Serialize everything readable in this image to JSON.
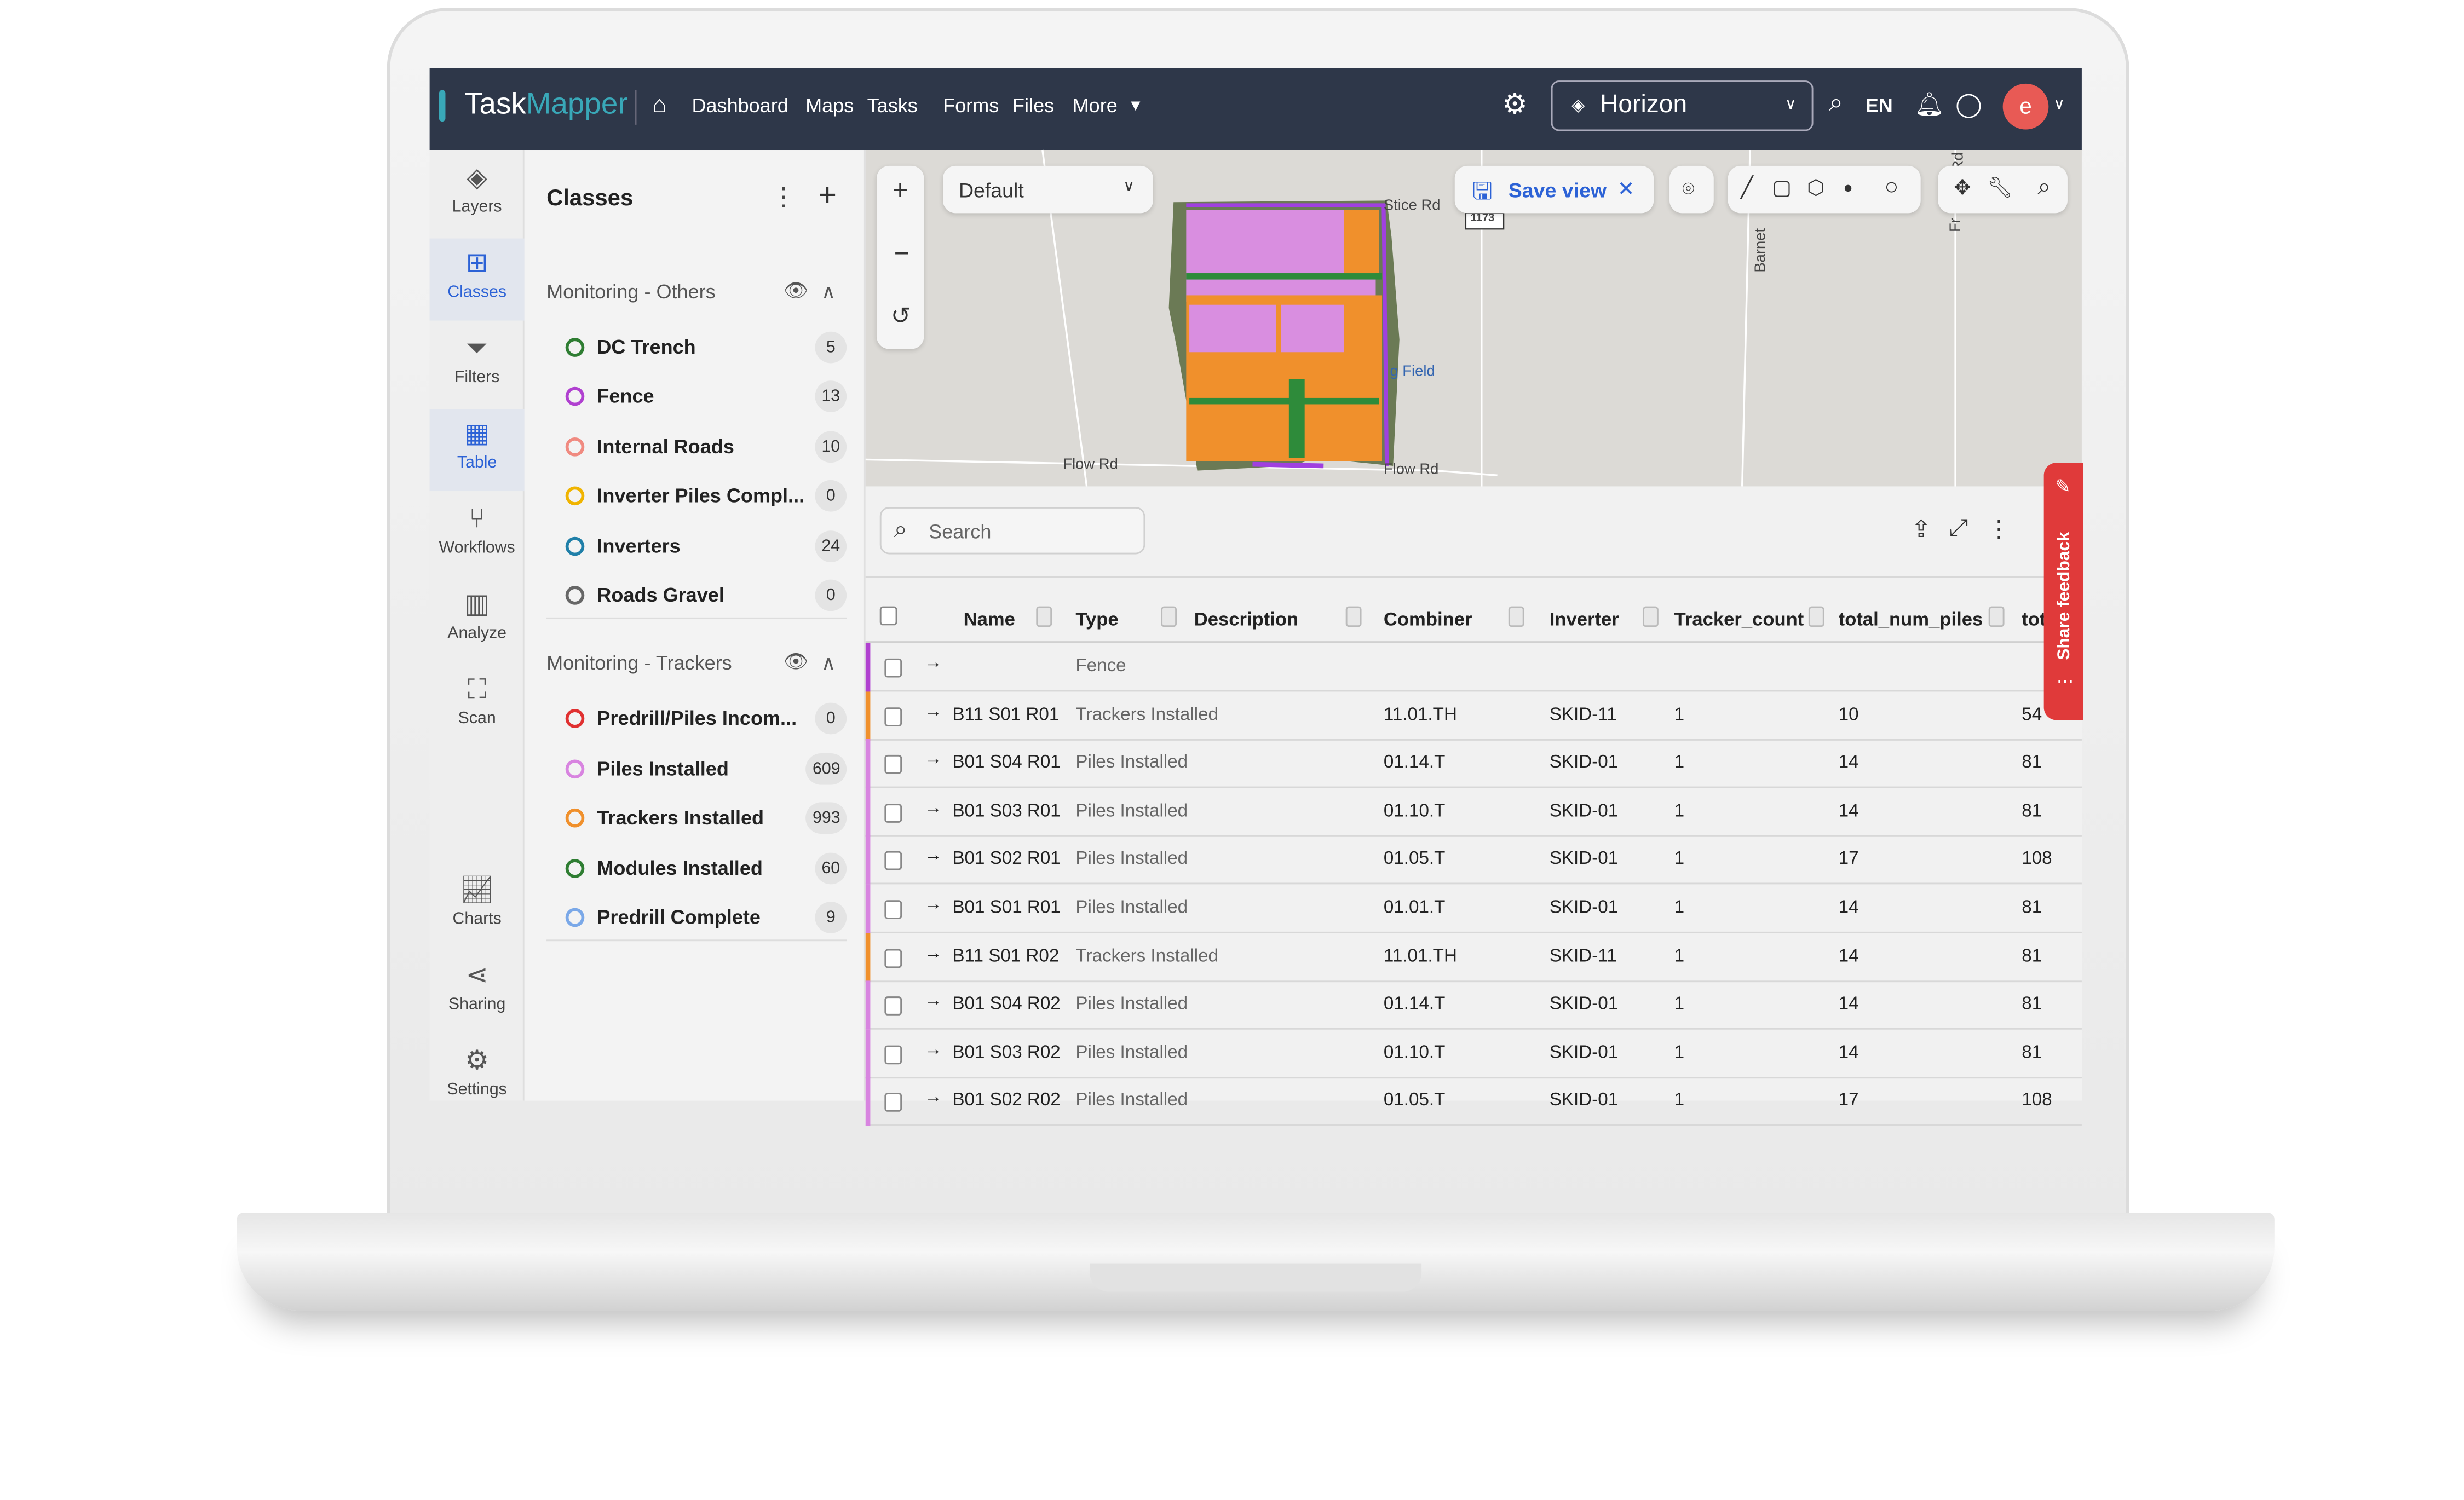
{
  "topbar": {
    "logo_task": "Task",
    "logo_mapper": "Mapper",
    "nav": [
      "Dashboard",
      "Maps",
      "Tasks",
      "Forms",
      "Files",
      "More"
    ],
    "project": "Horizon",
    "language": "EN",
    "avatar_letter": "e",
    "colors": {
      "bar": "#2e3749",
      "avatar": "#e85a55",
      "logo_accent": "#39a8b8"
    }
  },
  "rail": [
    {
      "label": "Layers",
      "icon": "layers-icon"
    },
    {
      "label": "Classes",
      "icon": "grid-icon",
      "active": true
    },
    {
      "label": "Filters",
      "icon": "filter-icon"
    },
    {
      "label": "Table",
      "icon": "table-icon",
      "active": true
    },
    {
      "label": "Workflows",
      "icon": "workflow-icon"
    },
    {
      "label": "Analyze",
      "icon": "bar-chart-icon"
    },
    {
      "label": "Scan",
      "icon": "scan-icon"
    },
    {
      "label": "Charts",
      "icon": "line-chart-icon"
    },
    {
      "label": "Sharing",
      "icon": "share-icon"
    },
    {
      "label": "Settings",
      "icon": "gear-icon"
    }
  ],
  "classes": {
    "title": "Classes",
    "groups": [
      {
        "name": "Monitoring - Others",
        "items": [
          {
            "label": "DC Trench",
            "count": "5",
            "color": "#2e7d32"
          },
          {
            "label": "Fence",
            "count": "13",
            "color": "#b040d0"
          },
          {
            "label": "Internal Roads",
            "count": "10",
            "color": "#f08a80"
          },
          {
            "label": "Inverter Piles Compl...",
            "count": "0",
            "color": "#f0b400"
          },
          {
            "label": "Inverters",
            "count": "24",
            "color": "#1f7fa8"
          },
          {
            "label": "Roads Gravel",
            "count": "0",
            "color": "#666666"
          }
        ]
      },
      {
        "name": "Monitoring - Trackers",
        "items": [
          {
            "label": "Predrill/Piles Incom...",
            "count": "0",
            "color": "#e03030"
          },
          {
            "label": "Piles Installed",
            "count": "609",
            "color": "#d884e0"
          },
          {
            "label": "Trackers Installed",
            "count": "993",
            "color": "#f0902c"
          },
          {
            "label": "Modules Installed",
            "count": "60",
            "color": "#2e7d32"
          },
          {
            "label": "Predrill Complete",
            "count": "9",
            "color": "#7aa8e8"
          }
        ]
      }
    ]
  },
  "map": {
    "view": "Default",
    "save_view": "Save view",
    "roads": [
      "Stice Rd",
      "Flow Rd",
      "Flow Rd",
      "g Field",
      "Barnet",
      "Rd",
      "Fr",
      "1173"
    ]
  },
  "table": {
    "search_placeholder": "Search",
    "columns": [
      "Name",
      "Type",
      "Description",
      "Combiner",
      "Inverter",
      "Tracker_count",
      "total_num_piles",
      "tot"
    ],
    "rows": [
      {
        "name": "",
        "type": "Fence",
        "combiner": "",
        "inverter": "",
        "tracker_count": "",
        "piles": "",
        "tot": "",
        "color": "#b040d0"
      },
      {
        "name": "B11 S01 R01",
        "type": "Trackers Installed",
        "combiner": "11.01.TH",
        "inverter": "SKID-11",
        "tracker_count": "1",
        "piles": "10",
        "tot": "54",
        "color": "#f0902c"
      },
      {
        "name": "B01 S04 R01",
        "type": "Piles Installed",
        "combiner": "01.14.T",
        "inverter": "SKID-01",
        "tracker_count": "1",
        "piles": "14",
        "tot": "81",
        "color": "#d884e0"
      },
      {
        "name": "B01 S03 R01",
        "type": "Piles Installed",
        "combiner": "01.10.T",
        "inverter": "SKID-01",
        "tracker_count": "1",
        "piles": "14",
        "tot": "81",
        "color": "#d884e0"
      },
      {
        "name": "B01 S02 R01",
        "type": "Piles Installed",
        "combiner": "01.05.T",
        "inverter": "SKID-01",
        "tracker_count": "1",
        "piles": "17",
        "tot": "108",
        "color": "#d884e0"
      },
      {
        "name": "B01 S01 R01",
        "type": "Piles Installed",
        "combiner": "01.01.T",
        "inverter": "SKID-01",
        "tracker_count": "1",
        "piles": "14",
        "tot": "81",
        "color": "#d884e0"
      },
      {
        "name": "B11 S01 R02",
        "type": "Trackers Installed",
        "combiner": "11.01.TH",
        "inverter": "SKID-11",
        "tracker_count": "1",
        "piles": "14",
        "tot": "81",
        "color": "#f0902c"
      },
      {
        "name": "B01 S04 R02",
        "type": "Piles Installed",
        "combiner": "01.14.T",
        "inverter": "SKID-01",
        "tracker_count": "1",
        "piles": "14",
        "tot": "81",
        "color": "#d884e0"
      },
      {
        "name": "B01 S03 R02",
        "type": "Piles Installed",
        "combiner": "01.10.T",
        "inverter": "SKID-01",
        "tracker_count": "1",
        "piles": "14",
        "tot": "81",
        "color": "#d884e0"
      },
      {
        "name": "B01 S02 R02",
        "type": "Piles Installed",
        "combiner": "01.05.T",
        "inverter": "SKID-01",
        "tracker_count": "1",
        "piles": "17",
        "tot": "108",
        "color": "#d884e0"
      }
    ]
  },
  "feedback": {
    "label": "Share feedback",
    "color": "#e03a3a"
  }
}
